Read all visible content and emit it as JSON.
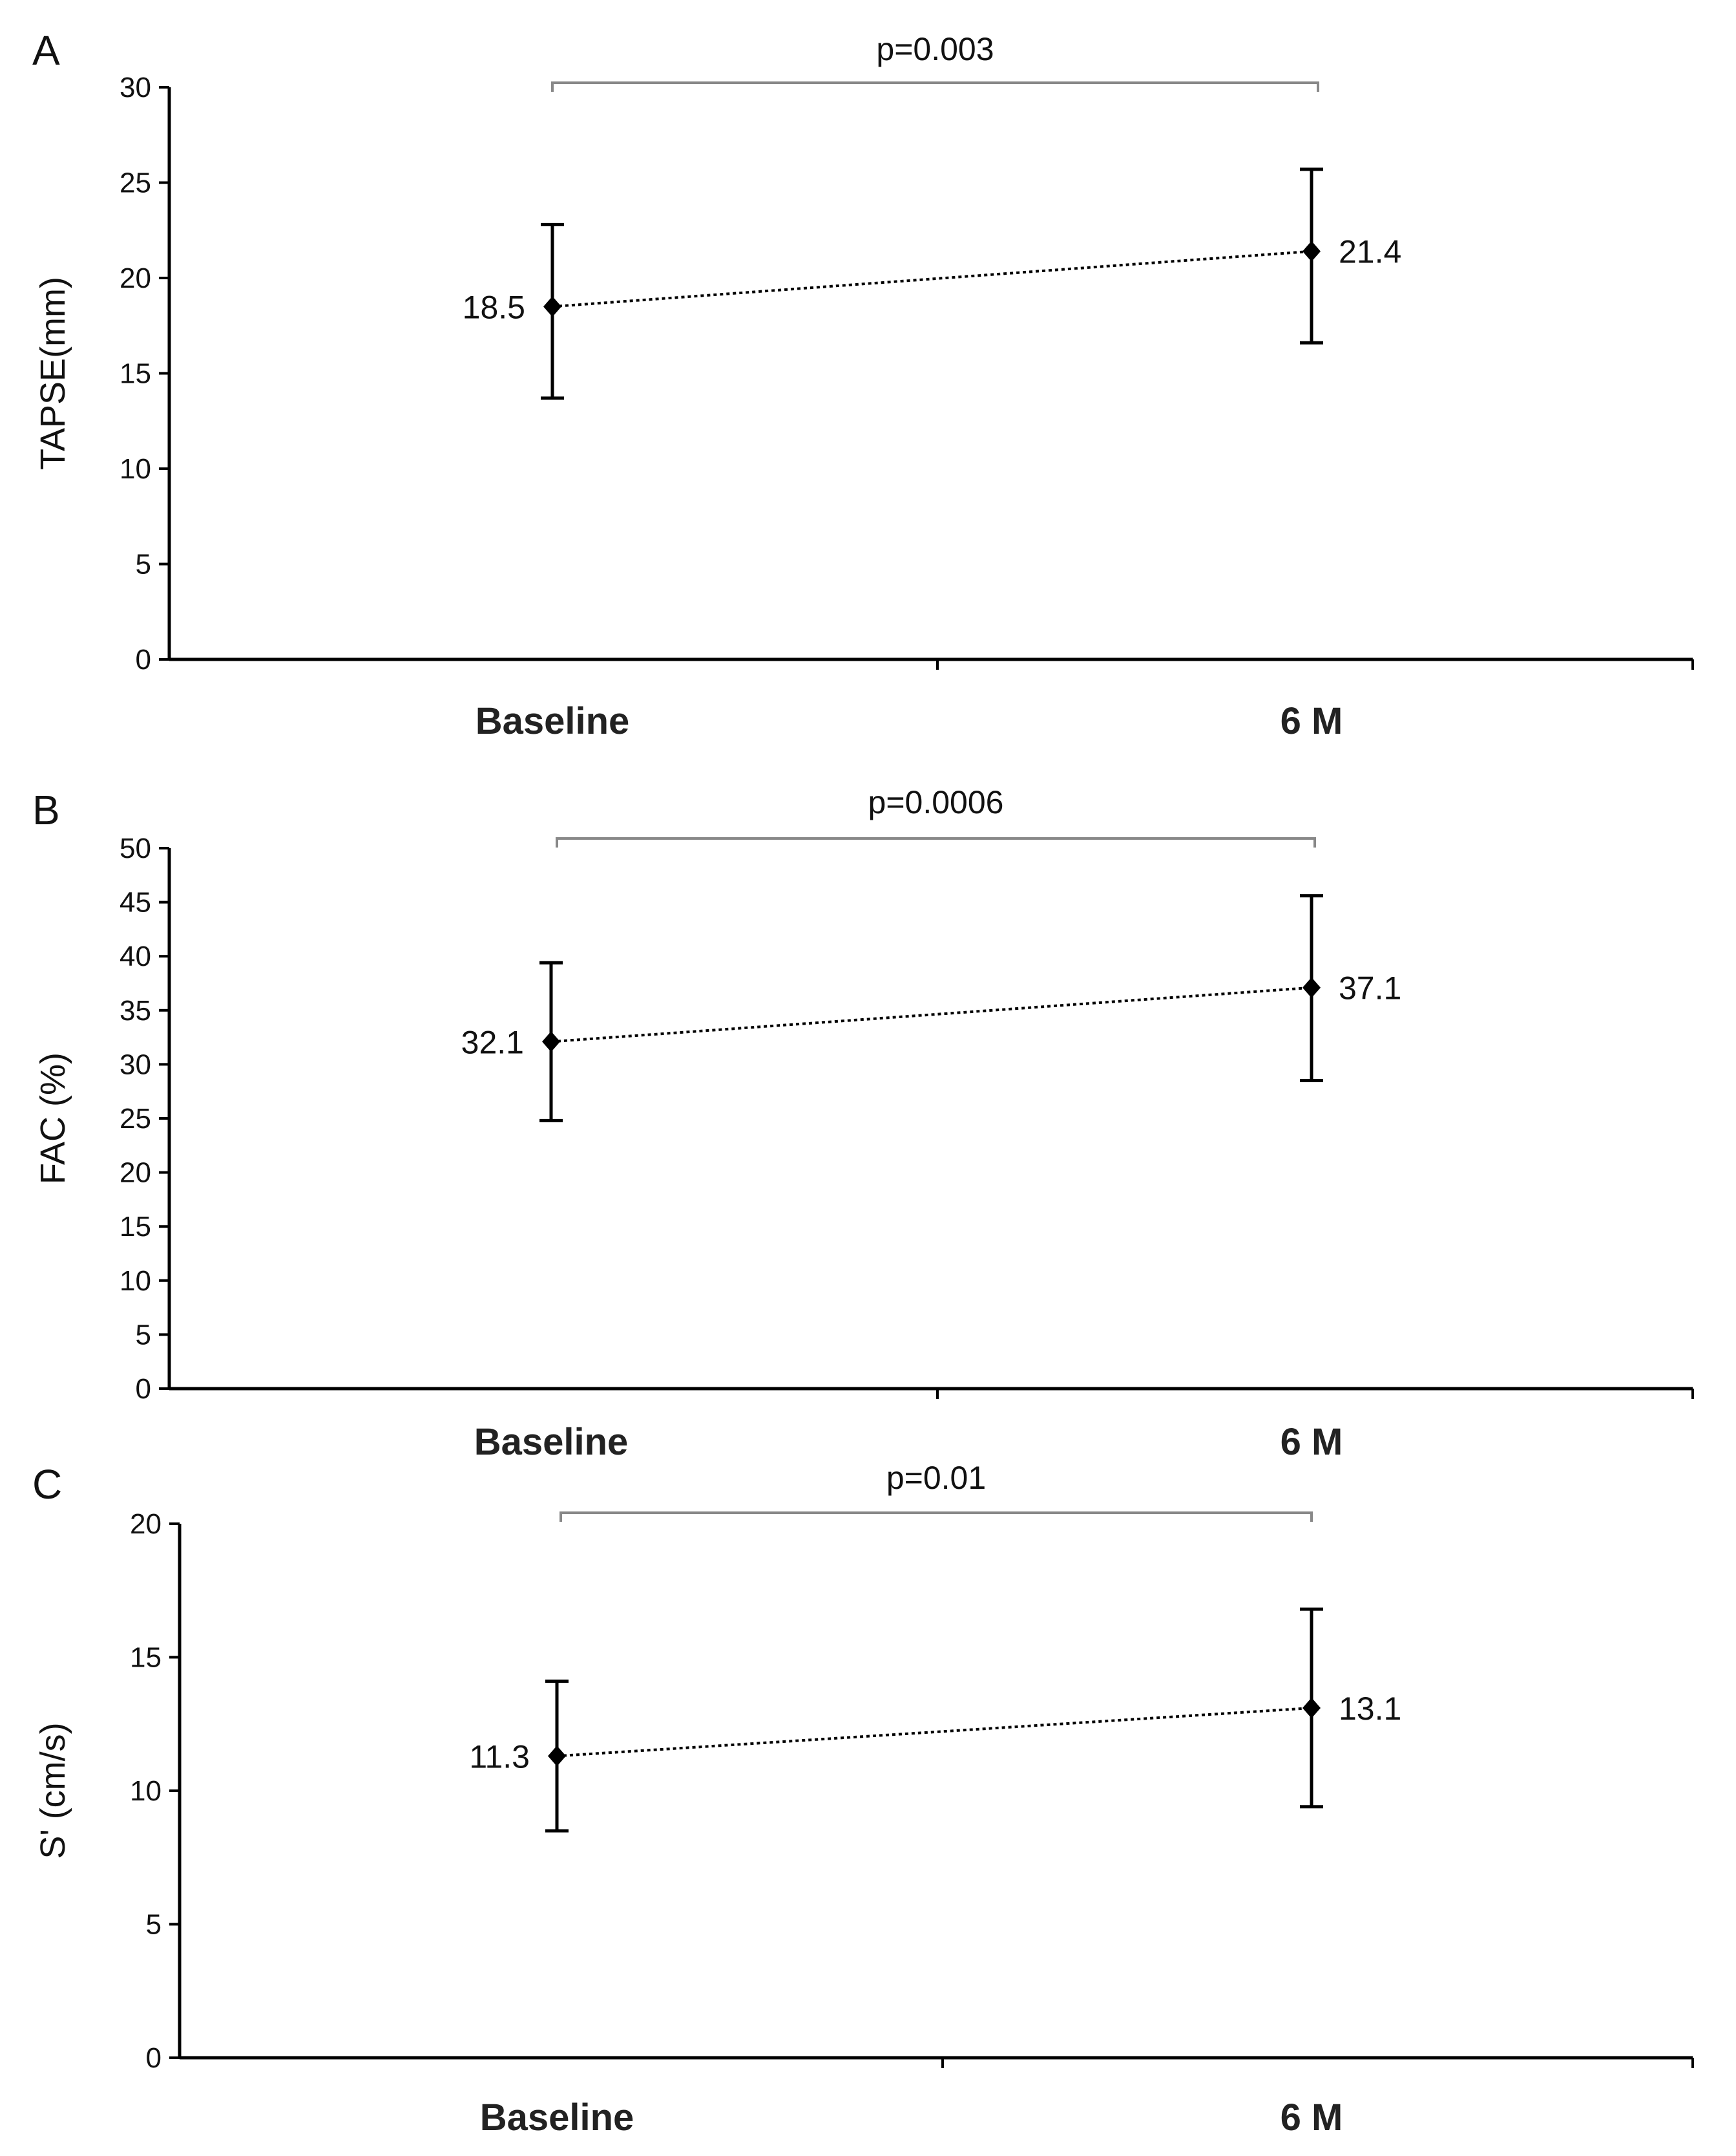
{
  "chart_data": [
    {
      "type": "scatter",
      "panel": "A",
      "ylabel": "TAPSE(mm)",
      "categories": [
        "Baseline",
        "6 M"
      ],
      "values": [
        18.5,
        21.4
      ],
      "value_labels": [
        "18.5",
        "21.4"
      ],
      "error_low": [
        13.7,
        16.6
      ],
      "error_high": [
        22.8,
        25.7
      ],
      "ylim": [
        0,
        30
      ],
      "yticks": [
        0,
        5,
        10,
        15,
        20,
        25,
        30
      ],
      "p_value": "p=0.003"
    },
    {
      "type": "scatter",
      "panel": "B",
      "ylabel": "FAC (%)",
      "categories": [
        "Baseline",
        "6 M"
      ],
      "values": [
        32.1,
        37.1
      ],
      "value_labels": [
        "32.1",
        "37.1"
      ],
      "error_low": [
        24.8,
        28.5
      ],
      "error_high": [
        39.4,
        45.6
      ],
      "ylim": [
        0,
        50
      ],
      "yticks": [
        0,
        5,
        10,
        15,
        20,
        25,
        30,
        35,
        40,
        45,
        50
      ],
      "p_value": "p=0.0006"
    },
    {
      "type": "scatter",
      "panel": "C",
      "ylabel": "S' (cm/s)",
      "categories": [
        "Baseline",
        "6 M"
      ],
      "values": [
        11.3,
        13.1
      ],
      "value_labels": [
        "11.3",
        "13.1"
      ],
      "error_low": [
        8.5,
        9.4
      ],
      "error_high": [
        14.1,
        16.8
      ],
      "ylim": [
        0,
        20
      ],
      "yticks": [
        0,
        5,
        10,
        15,
        20
      ],
      "p_value": "p=0.01"
    }
  ]
}
